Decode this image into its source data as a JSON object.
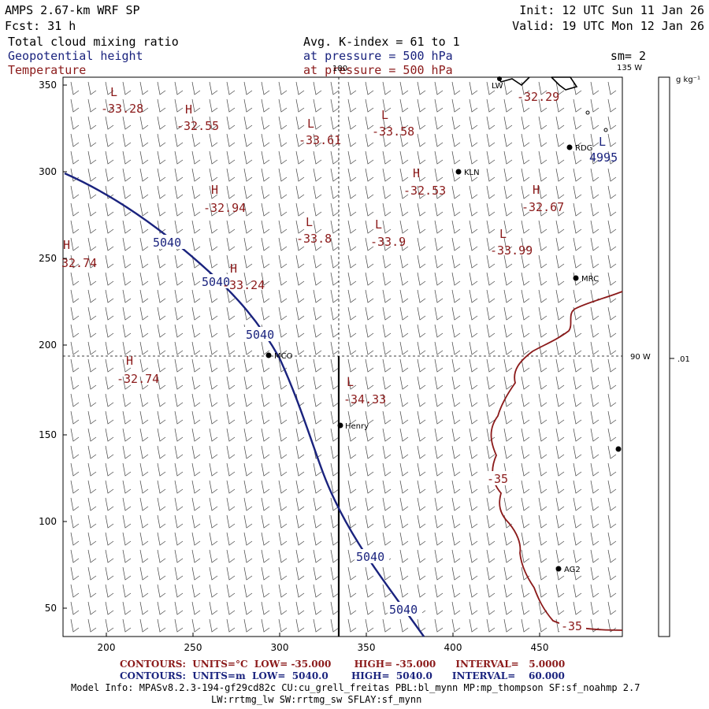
{
  "header": {
    "model": "AMPS 2.67-km WRF SP",
    "init": "Init: 12 UTC Sun 11 Jan 26",
    "fcst": "Fcst:    31 h",
    "valid": "Valid: 19 UTC Mon 12 Jan 26",
    "field1": "Total cloud mixing ratio",
    "field1_info": "Avg. K-index =  61 to   1",
    "field2": "Geopotential height",
    "field2_info": "at pressure =  500 hPa",
    "field2_extra": "sm= 2",
    "field3": "Temperature",
    "field3_info": "at pressure =  500 hPa",
    "lon_top": "135 W",
    "lon_top_left": "180",
    "lon_right": "90 W"
  },
  "axes": {
    "x_ticks": [
      "200",
      "250",
      "300",
      "350",
      "400",
      "450"
    ],
    "y_ticks": [
      "350",
      "300",
      "250",
      "200",
      "150",
      "100",
      "50"
    ]
  },
  "colorbar": {
    "unit": "g kg⁻¹",
    "label": ".01"
  },
  "stations": [
    {
      "name": "RDG"
    },
    {
      "name": "KLN"
    },
    {
      "name": "MRC"
    },
    {
      "name": "MCO"
    },
    {
      "name": "Henry"
    },
    {
      "name": "AG2"
    },
    {
      "name": "LW"
    }
  ],
  "temperature_labels": [
    {
      "type": "L",
      "value": "-33.28"
    },
    {
      "type": "H",
      "value": "-32.55"
    },
    {
      "type": "L",
      "value": "-33.61"
    },
    {
      "type": "L",
      "value": "-33.58"
    },
    {
      "type": "H",
      "value": "-32.53"
    },
    {
      "type": "H",
      "value": "-32.67"
    },
    {
      "type": "H",
      "value": "-32.94"
    },
    {
      "type": "L",
      "value": "-33.8"
    },
    {
      "type": "L",
      "value": "-33.9"
    },
    {
      "type": "L",
      "value": "-33.99"
    },
    {
      "type": "H",
      "value": "32.74"
    },
    {
      "type": "H",
      "value": "-33.24"
    },
    {
      "type": "H",
      "value": "-32.74"
    },
    {
      "type": "L",
      "value": "-34.33"
    },
    {
      "type": "",
      "value": "-32.29"
    }
  ],
  "height_labels": [
    "5040",
    "5040",
    "5040",
    "5040",
    "5040"
  ],
  "height_low": {
    "type": "L",
    "value": "4995"
  },
  "temp_contour_labels": [
    "-35",
    "-35"
  ],
  "footer": {
    "temp_contours": "CONTOURS:  UNITS=°C  LOW= -35.000       HIGH= -35.000      INTERVAL=   5.0000",
    "height_contours": "CONTOURS:  UNITS=m  LOW=  5040.0       HIGH=  5040.0      INTERVAL=    60.000",
    "model_info": "Model Info: MPASv8.2.3-194-gf29cd82c CU:cu_grell_freitas PBL:bl_mynn MP:mp_thompson SF:sf_noahmp 2.7",
    "model_info2": "LW:rrtmg_lw SW:rrtmg_sw SFLAY:sf_mynn"
  },
  "colors": {
    "temperature": "#8b1a1a",
    "height": "#1a237e",
    "frame": "#000000"
  }
}
